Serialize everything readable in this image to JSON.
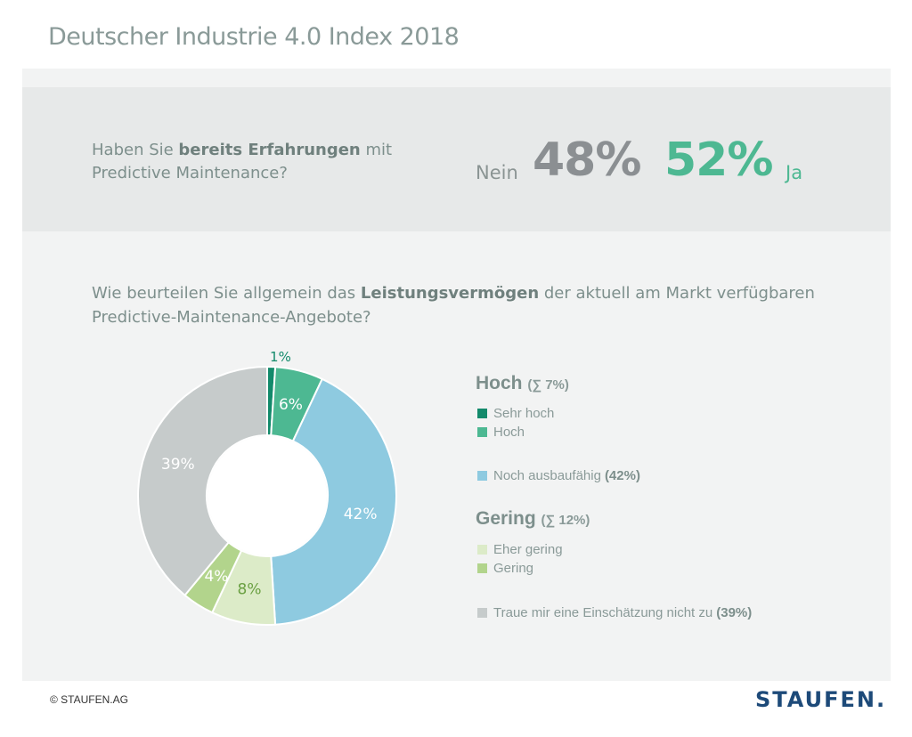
{
  "header": {
    "title": "Deutscher Industrie 4.0 Index 2018"
  },
  "question1": {
    "text_before": "Haben Sie ",
    "text_bold": "bereits Erfahrungen",
    "text_after": " mit",
    "line2": "Predictive Maintenance?",
    "no_label": "Nein",
    "no_value": "48%",
    "yes_value": "52%",
    "yes_label": "Ja"
  },
  "question2": {
    "text_before": "Wie beurteilen Sie allgemein das ",
    "text_bold": "Leistungsvermögen",
    "text_after": " der aktuell am Markt verfügbaren",
    "line2": "Predictive-Maintenance-Angebote?"
  },
  "chart_data": {
    "type": "pie",
    "donut": true,
    "title": "Wie beurteilen Sie allgemein das Leistungsvermögen der aktuell am Markt verfügbaren Predictive-Maintenance-Angebote?",
    "start": "top",
    "direction": "clockwise",
    "slices": [
      {
        "name": "Sehr hoch",
        "value": 1,
        "label": "1%",
        "color": "#138a6b",
        "label_color": "#138a6b",
        "label_outside": true
      },
      {
        "name": "Hoch",
        "value": 6,
        "label": "6%",
        "color": "#4db892",
        "label_color": "#ffffff"
      },
      {
        "name": "Noch ausbaufähig",
        "value": 42,
        "label": "42%",
        "color": "#8ecae0",
        "label_color": "#ffffff"
      },
      {
        "name": "Eher gering",
        "value": 8,
        "label": "8%",
        "color": "#dcebc8",
        "label_color": "#6aa042"
      },
      {
        "name": "Gering",
        "value": 4,
        "label": "4%",
        "color": "#b2d48c",
        "label_color": "#ffffff"
      },
      {
        "name": "Traue mir eine Einschätzung nicht zu",
        "value": 39,
        "label": "39%",
        "color": "#c6cbcb",
        "label_color": "#ffffff"
      }
    ],
    "legend": {
      "placement": "right",
      "groups": [
        {
          "heading": "Hoch",
          "sum": "(∑ 7%)",
          "items": [
            {
              "label": "Sehr hoch",
              "color": "#138a6b"
            },
            {
              "label": "Hoch",
              "color": "#4db892"
            }
          ]
        },
        {
          "heading": "",
          "sum": "",
          "items": [
            {
              "label": "Noch ausbaufähig",
              "value_text": "(42%)",
              "color": "#8ecae0"
            }
          ]
        },
        {
          "heading": "Gering",
          "sum": "(∑ 12%)",
          "items": [
            {
              "label": "Eher gering",
              "color": "#dcebc8"
            },
            {
              "label": "Gering",
              "color": "#b2d48c"
            }
          ]
        },
        {
          "heading": "",
          "sum": "",
          "items": [
            {
              "label": "Traue mir eine Einschätzung nicht zu",
              "value_text": "(39%)",
              "color": "#c6cbcb"
            }
          ]
        }
      ]
    }
  },
  "footer": {
    "copyright": "© STAUFEN.AG",
    "logo": "STAUFEN."
  }
}
